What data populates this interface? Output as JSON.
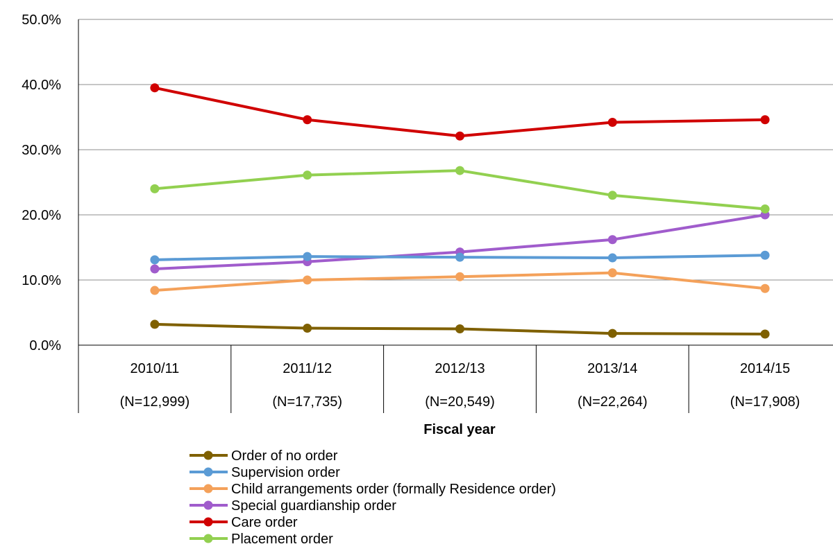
{
  "chart_data": {
    "type": "line",
    "title": "",
    "xlabel": "Fiscal year",
    "ylabel": "",
    "ylim": [
      0,
      50
    ],
    "y_ticks": [
      "0.0%",
      "10.0%",
      "20.0%",
      "30.0%",
      "40.0%",
      "50.0%"
    ],
    "grid": "horizontal",
    "legend_position": "bottom",
    "categories": [
      "2010/11",
      "2011/12",
      "2012/13",
      "2013/14",
      "2014/15"
    ],
    "category_counts": [
      "(N=12,999)",
      "(N=17,735)",
      "(N=20,549)",
      "(N=22,264)",
      "(N=17,908)"
    ],
    "series": [
      {
        "name": "Order of no order",
        "color": "#7f6000",
        "values": [
          3.2,
          2.6,
          2.5,
          1.8,
          1.7
        ]
      },
      {
        "name": "Supervision order",
        "color": "#5b9bd5",
        "values": [
          13.1,
          13.6,
          13.5,
          13.4,
          13.8
        ]
      },
      {
        "name": "Child arrangements order (formally Residence order)",
        "color": "#f4a15a",
        "values": [
          8.4,
          10.0,
          10.5,
          11.1,
          8.7
        ]
      },
      {
        "name": "Special guardianship order",
        "color": "#a05ccc",
        "values": [
          11.7,
          12.8,
          14.3,
          16.2,
          20.0
        ]
      },
      {
        "name": "Care order",
        "color": "#d00000",
        "values": [
          39.5,
          34.6,
          32.1,
          34.2,
          34.6
        ]
      },
      {
        "name": "Placement order",
        "color": "#92d050",
        "values": [
          24.0,
          26.1,
          26.8,
          23.0,
          20.9
        ]
      }
    ]
  }
}
